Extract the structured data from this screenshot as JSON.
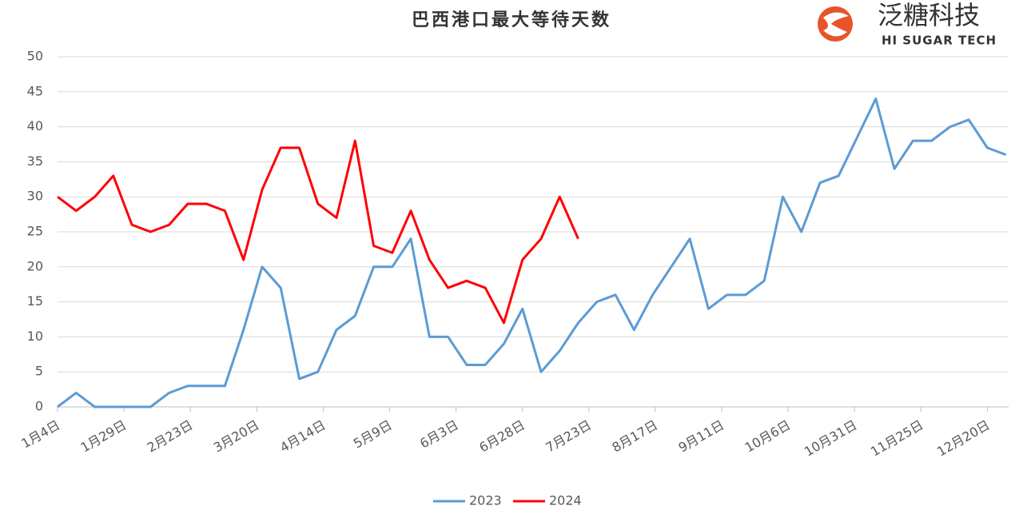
{
  "chart_data": {
    "type": "line",
    "title": "巴西港口最大等待天数",
    "logo": {
      "name": "泛糖科技",
      "subtitle": "HI SUGAR TECH"
    },
    "x": [
      4,
      11,
      18,
      25,
      32,
      39,
      46,
      53,
      60,
      67,
      74,
      81,
      88,
      95,
      102,
      109,
      116,
      123,
      130,
      137,
      144,
      151,
      158,
      165,
      172,
      179,
      186,
      193,
      200,
      207,
      214,
      221,
      228,
      235,
      242,
      249,
      256,
      263,
      270,
      277,
      284,
      291,
      298,
      305,
      312,
      319,
      326,
      333,
      340,
      347,
      354,
      361
    ],
    "xlim": [
      4,
      362
    ],
    "xticks": [
      {
        "value": 4,
        "label": "1月4日"
      },
      {
        "value": 29,
        "label": "1月29日"
      },
      {
        "value": 54,
        "label": "2月23日"
      },
      {
        "value": 79,
        "label": "3月20日"
      },
      {
        "value": 104,
        "label": "4月14日"
      },
      {
        "value": 129,
        "label": "5月9日"
      },
      {
        "value": 154,
        "label": "6月3日"
      },
      {
        "value": 179,
        "label": "6月28日"
      },
      {
        "value": 204,
        "label": "7月23日"
      },
      {
        "value": 229,
        "label": "8月17日"
      },
      {
        "value": 254,
        "label": "9月11日"
      },
      {
        "value": 279,
        "label": "10月6日"
      },
      {
        "value": 304,
        "label": "10月31日"
      },
      {
        "value": 329,
        "label": "11月25日"
      },
      {
        "value": 354,
        "label": "12月20日"
      }
    ],
    "ylim": [
      0,
      50
    ],
    "yticks": [
      0,
      5,
      10,
      15,
      20,
      25,
      30,
      35,
      40,
      45,
      50
    ],
    "grid": true,
    "series": [
      {
        "name": "2023",
        "color": "#5b9bd5",
        "values": [
          0,
          2,
          0,
          0,
          0,
          0,
          2,
          3,
          3,
          3,
          11,
          20,
          17,
          4,
          5,
          11,
          13,
          20,
          20,
          24,
          10,
          10,
          6,
          6,
          9,
          14,
          5,
          8,
          12,
          15,
          16,
          11,
          16,
          20,
          24,
          14,
          16,
          16,
          18,
          30,
          25,
          32,
          33,
          38.5,
          44,
          34,
          38,
          38,
          40,
          41,
          37,
          36
        ]
      },
      {
        "name": "2024",
        "color": "#ff0000",
        "values": [
          30,
          28,
          30,
          33,
          26,
          25,
          26,
          29,
          29,
          28,
          21,
          31,
          37,
          37,
          29,
          27,
          38,
          23,
          22,
          28,
          21,
          17,
          18,
          17,
          12,
          21,
          24,
          30,
          24,
          null,
          null,
          null,
          null,
          null,
          null,
          null,
          null,
          null,
          null,
          null,
          null,
          null,
          null,
          null,
          null,
          null,
          null,
          null,
          null,
          null,
          null,
          null
        ]
      }
    ]
  }
}
